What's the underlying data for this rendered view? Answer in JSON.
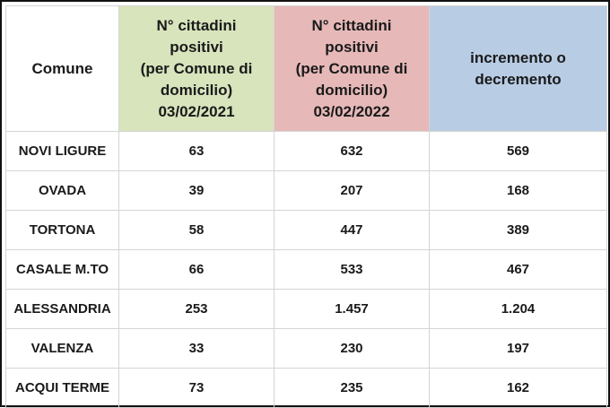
{
  "headers": {
    "comune": "Comune",
    "col_2021": [
      "N° cittadini",
      "positivi",
      "(per Comune di",
      "domicilio)",
      "03/02/2021"
    ],
    "col_2022": [
      "N° cittadini",
      "positivi",
      "(per Comune di",
      "domicilio)",
      "03/02/2022"
    ],
    "diff": [
      "incremento o",
      "decremento"
    ]
  },
  "rows": [
    {
      "comune": "NOVI LIGURE",
      "v2021": "63",
      "v2022": "632",
      "diff": "569"
    },
    {
      "comune": "OVADA",
      "v2021": "39",
      "v2022": "207",
      "diff": "168"
    },
    {
      "comune": "TORTONA",
      "v2021": "58",
      "v2022": "447",
      "diff": "389"
    },
    {
      "comune": "CASALE M.TO",
      "v2021": "66",
      "v2022": "533",
      "diff": "467"
    },
    {
      "comune": "ALESSANDRIA",
      "v2021": "253",
      "v2022": "1.457",
      "diff": "1.204"
    },
    {
      "comune": "VALENZA",
      "v2021": "33",
      "v2022": "230",
      "diff": "197"
    },
    {
      "comune": "ACQUI TERME",
      "v2021": "73",
      "v2022": "235",
      "diff": "162"
    }
  ],
  "colors": {
    "header_2021": "#d8e4bc",
    "header_2022": "#e6b9b8",
    "header_diff": "#b8cce4",
    "diff_text": "#e03020"
  }
}
